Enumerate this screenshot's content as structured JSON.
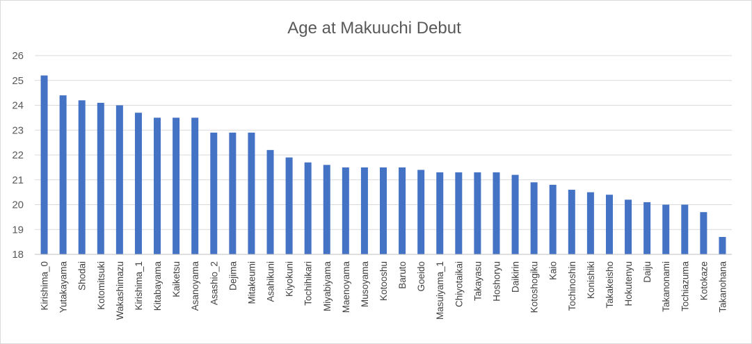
{
  "chart_data": {
    "type": "bar",
    "title": "Age at Makuuchi Debut",
    "xlabel": "",
    "ylabel": "",
    "ylim": [
      18,
      26
    ],
    "yticks": [
      18,
      19,
      20,
      21,
      22,
      23,
      24,
      25,
      26
    ],
    "grid": true,
    "legend": "none",
    "bar_color": "#4472c4",
    "categories": [
      "Kirishima_0",
      "Yutakayama",
      "Shodai",
      "Kotomitsuki",
      "Wakashimazu",
      "Kirishima_1",
      "Kitabayama",
      "Kaiketsu",
      "Asanoyama",
      "Asashio_2",
      "Dejima",
      "Mitakeumi",
      "Asahikuni",
      "Kiyokuni",
      "Tochihikari",
      "Miyabiyama",
      "Maenoyama",
      "Musoyama",
      "Kotooshu",
      "Baruto",
      "Goeido",
      "Masuiyama_1",
      "Chiyotaikai",
      "Takayasu",
      "Hoshoryu",
      "Daikirin",
      "Kotoshogiku",
      "Kaio",
      "Tochinoshin",
      "Konishiki",
      "Takakeisho",
      "Hokutenyu",
      "Daiju",
      "Takanonami",
      "Tochiazuma",
      "Kotokaze",
      "Takanohana"
    ],
    "values": [
      25.2,
      24.4,
      24.2,
      24.1,
      24.0,
      23.7,
      23.5,
      23.5,
      23.5,
      22.9,
      22.9,
      22.9,
      22.2,
      21.9,
      21.7,
      21.6,
      21.5,
      21.5,
      21.5,
      21.5,
      21.4,
      21.3,
      21.3,
      21.3,
      21.3,
      21.2,
      20.9,
      20.8,
      20.6,
      20.5,
      20.4,
      20.2,
      20.1,
      20.0,
      20.0,
      19.7,
      18.7
    ]
  }
}
